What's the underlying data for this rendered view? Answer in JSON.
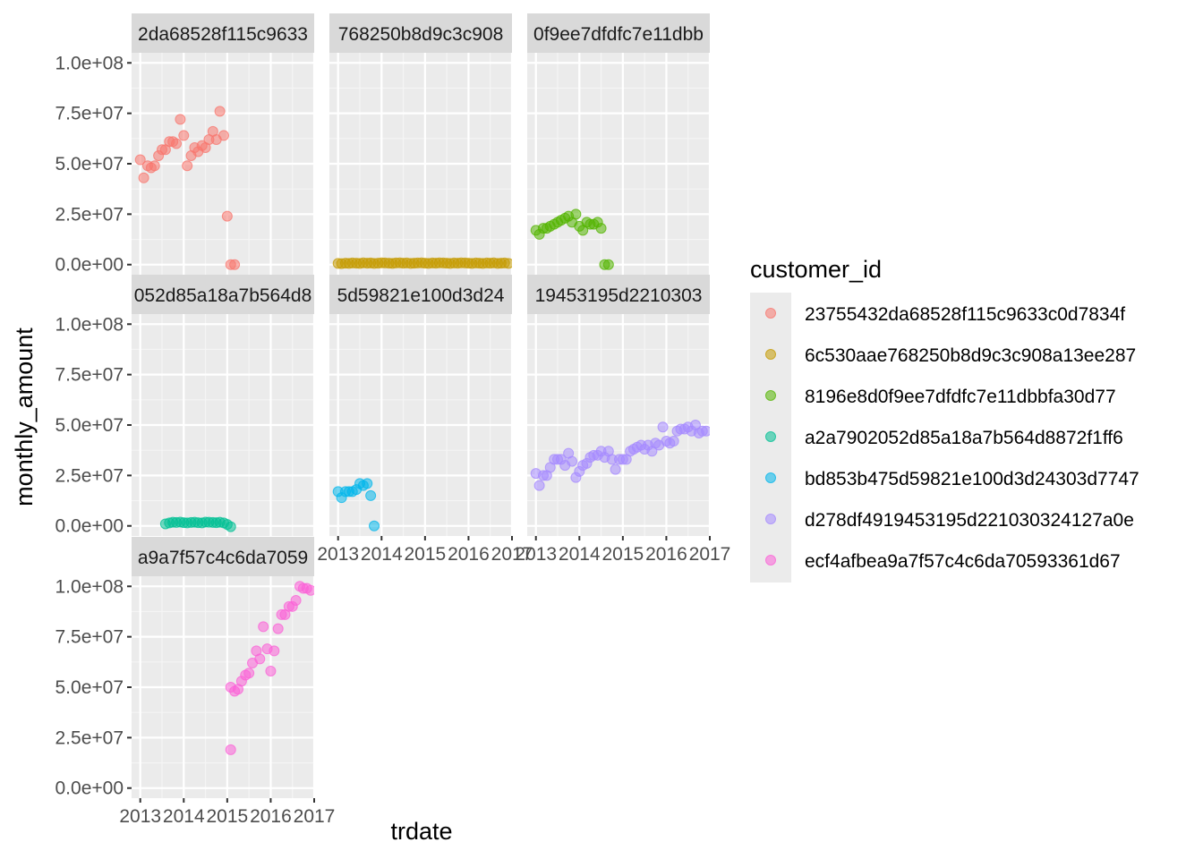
{
  "chart_data": {
    "type": "scatter",
    "facet_layout": "wrap",
    "xlabel": "trdate",
    "ylabel": "monthly_amount",
    "xlim": [
      2012.8,
      2017.0
    ],
    "ylim": [
      -5000000,
      105000000
    ],
    "x_ticks": [
      "2013",
      "2014",
      "2015",
      "2016",
      "2017"
    ],
    "y_ticks": [
      "0.0e+00",
      "2.5e+07",
      "5.0e+07",
      "7.5e+07",
      "1.0e+08"
    ],
    "grid": true,
    "legend": {
      "title": "customer_id",
      "position": "right",
      "entries": [
        "23755432da68528f115c9633c0d7834f",
        "6c530aae768250b8d9c3c908a13ee287",
        "8196e8d0f9ee7dfdfc7e11dbbfa30d77",
        "a2a7902052d85a18a7b564d8872f1ff6",
        "bd853b475d59821e100d3d24303d7747",
        "d278df4919453195d221030324127a0e",
        "ecf4afbea9a7f57c4c6da70593361d67"
      ]
    },
    "colors": [
      "#F8766D",
      "#C49A00",
      "#53B400",
      "#00C094",
      "#00B6EB",
      "#A58AFF",
      "#FB61D7"
    ],
    "series": [
      {
        "name": "23755432da68528f115c9633c0d7834f",
        "strip": "2da68528f115c9633",
        "x": [
          2013.0,
          2013.08,
          2013.17,
          2013.25,
          2013.33,
          2013.42,
          2013.5,
          2013.58,
          2013.67,
          2013.75,
          2013.83,
          2013.92,
          2014.0,
          2014.08,
          2014.17,
          2014.25,
          2014.33,
          2014.42,
          2014.5,
          2014.58,
          2014.67,
          2014.75,
          2014.83,
          2014.92,
          2015.0,
          2015.08,
          2015.17
        ],
        "y": [
          52000000,
          43000000,
          49000000,
          48000000,
          49000000,
          54000000,
          57000000,
          57000000,
          61000000,
          61000000,
          60000000,
          72000000,
          64000000,
          49000000,
          54000000,
          58000000,
          56000000,
          59000000,
          58000000,
          62000000,
          66000000,
          62000000,
          76000000,
          64000000,
          24000000,
          0,
          0
        ]
      },
      {
        "name": "6c530aae768250b8d9c3c908a13ee287",
        "strip": "768250b8d9c3c908",
        "x": [
          2013.0,
          2013.08,
          2013.17,
          2013.25,
          2013.33,
          2013.42,
          2013.5,
          2013.58,
          2013.67,
          2013.75,
          2013.83,
          2013.92,
          2014.0,
          2014.08,
          2014.17,
          2014.25,
          2014.33,
          2014.42,
          2014.5,
          2014.58,
          2014.67,
          2014.75,
          2014.83,
          2014.92,
          2015.0,
          2015.08,
          2015.17,
          2015.25,
          2015.33,
          2015.42,
          2015.5,
          2015.58,
          2015.67,
          2015.75,
          2015.83,
          2015.92,
          2016.0,
          2016.08,
          2016.17,
          2016.25,
          2016.33,
          2016.42,
          2016.5,
          2016.58,
          2016.67,
          2016.75,
          2016.83,
          2016.92
        ],
        "y": [
          600000,
          500000,
          700000,
          600000,
          800000,
          700000,
          600000,
          900000,
          700000,
          800000,
          600000,
          700000,
          900000,
          800000,
          700000,
          600000,
          800000,
          900000,
          700000,
          800000,
          600000,
          700000,
          800000,
          900000,
          700000,
          600000,
          800000,
          700000,
          900000,
          800000,
          700000,
          600000,
          800000,
          700000,
          900000,
          800000,
          700000,
          600000,
          800000,
          700000,
          600000,
          800000,
          700000,
          900000,
          600000,
          700000,
          800000,
          600000
        ]
      },
      {
        "name": "8196e8d0f9ee7dfdfc7e11dbbfa30d77",
        "strip": "0f9ee7dfdfc7e11dbb",
        "x": [
          2013.0,
          2013.08,
          2013.17,
          2013.25,
          2013.33,
          2013.42,
          2013.5,
          2013.58,
          2013.67,
          2013.75,
          2013.83,
          2013.92,
          2014.0,
          2014.08,
          2014.17,
          2014.25,
          2014.33,
          2014.42,
          2014.5,
          2014.58,
          2014.67
        ],
        "y": [
          17000000,
          15000000,
          18000000,
          18000000,
          19000000,
          20000000,
          21000000,
          22000000,
          23000000,
          24000000,
          21000000,
          25000000,
          19000000,
          17000000,
          21000000,
          20000000,
          20000000,
          21000000,
          18000000,
          0,
          0
        ]
      },
      {
        "name": "a2a7902052d85a18a7b564d8872f1ff6",
        "strip": "052d85a18a7b564d8",
        "x": [
          2013.58,
          2013.67,
          2013.75,
          2013.83,
          2013.92,
          2014.0,
          2014.08,
          2014.17,
          2014.25,
          2014.33,
          2014.42,
          2014.5,
          2014.58,
          2014.67,
          2014.75,
          2014.83,
          2014.92,
          2015.0,
          2015.08
        ],
        "y": [
          1000000,
          1500000,
          1800000,
          1700000,
          1900000,
          1600000,
          1500000,
          1700000,
          1800000,
          1600000,
          1500000,
          1900000,
          1800000,
          1700000,
          1600000,
          1800000,
          1500000,
          700000,
          -400000
        ]
      },
      {
        "name": "bd853b475d59821e100d3d24303d7747",
        "strip": "5d59821e100d3d24",
        "x": [
          2013.0,
          2013.08,
          2013.17,
          2013.25,
          2013.33,
          2013.42,
          2013.5,
          2013.58,
          2013.67,
          2013.75,
          2013.83
        ],
        "y": [
          17000000,
          14000000,
          17000000,
          17000000,
          17000000,
          18000000,
          21000000,
          20000000,
          21000000,
          15000000,
          0
        ]
      },
      {
        "name": "d278df4919453195d221030324127a0e",
        "strip": "19453195d2210303",
        "x": [
          2013.0,
          2013.08,
          2013.17,
          2013.25,
          2013.33,
          2013.42,
          2013.5,
          2013.58,
          2013.67,
          2013.75,
          2013.83,
          2013.92,
          2014.0,
          2014.08,
          2014.17,
          2014.25,
          2014.33,
          2014.42,
          2014.5,
          2014.58,
          2014.67,
          2014.75,
          2014.83,
          2014.92,
          2015.0,
          2015.08,
          2015.17,
          2015.25,
          2015.33,
          2015.42,
          2015.5,
          2015.58,
          2015.67,
          2015.75,
          2015.83,
          2015.92,
          2016.0,
          2016.08,
          2016.17,
          2016.25,
          2016.33,
          2016.42,
          2016.5,
          2016.58,
          2016.67,
          2016.75,
          2016.83,
          2016.92
        ],
        "y": [
          26000000,
          20000000,
          25000000,
          25000000,
          29000000,
          33000000,
          33000000,
          33000000,
          30000000,
          36000000,
          32000000,
          24000000,
          27000000,
          30000000,
          31000000,
          34000000,
          35000000,
          35000000,
          37000000,
          34000000,
          37000000,
          33000000,
          28000000,
          33000000,
          33000000,
          33000000,
          37000000,
          38000000,
          39000000,
          40000000,
          38000000,
          40000000,
          37000000,
          41000000,
          40000000,
          49000000,
          42000000,
          41000000,
          42000000,
          47000000,
          48000000,
          48000000,
          49000000,
          47000000,
          50000000,
          46000000,
          47000000,
          47000000
        ]
      },
      {
        "name": "ecf4afbea9a7f57c4c6da70593361d67",
        "strip": "a9a7f57c4c6da7059",
        "x": [
          2015.08,
          2015.08,
          2015.17,
          2015.25,
          2015.33,
          2015.42,
          2015.5,
          2015.58,
          2015.67,
          2015.75,
          2015.83,
          2015.92,
          2016.0,
          2016.08,
          2016.17,
          2016.25,
          2016.33,
          2016.42,
          2016.5,
          2016.58,
          2016.67,
          2016.75,
          2016.83,
          2016.92
        ],
        "y": [
          19000000,
          50000000,
          48000000,
          49000000,
          53000000,
          56000000,
          57000000,
          62000000,
          68000000,
          64000000,
          80000000,
          69000000,
          58000000,
          68000000,
          79000000,
          86000000,
          86000000,
          90000000,
          90000000,
          93000000,
          100000000,
          99000000,
          99000000,
          98000000
        ]
      }
    ]
  }
}
